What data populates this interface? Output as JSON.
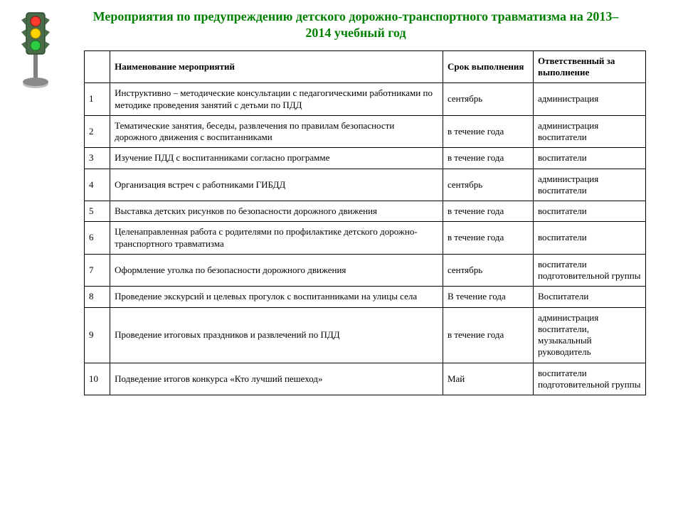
{
  "title": "Мероприятия по предупреждению детского дорожно-транспортного травматизма  на 2013– 2014 учебный  год",
  "columns": {
    "num": "",
    "name": "Наименование мероприятий",
    "term": "Срок выполнения",
    "resp": "Ответственный за выполнение"
  },
  "rows": [
    {
      "num": "1",
      "name": "Инструктивно – методические консультации с педагогическими работниками по методике проведения занятий с детьми по ПДД",
      "term": "сентябрь",
      "resp": "администрация"
    },
    {
      "num": "2",
      "name": "Тематические занятия, беседы, развлечения по правилам безопасности дорожного движения с воспитанниками",
      "term": "в течение года",
      "resp": "администрация воспитатели"
    },
    {
      "num": "3",
      "name": "Изучение ПДД с воспитанниками согласно программе",
      "term": "в течение года",
      "resp": "воспитатели"
    },
    {
      "num": "4",
      "name": "Организация встреч с работниками ГИБДД",
      "term": "сентябрь",
      "resp": "администрация воспитатели"
    },
    {
      "num": "5",
      "name": "Выставка детских рисунков по безопасности дорожного движения",
      "term": "в течение года",
      "resp": "воспитатели"
    },
    {
      "num": "6",
      "name": "Целенаправленная работа с родителями по профилактике детского дорожно-транспортного травматизма",
      "term": "в течение года",
      "resp": "воспитатели"
    },
    {
      "num": "7",
      "name": "Оформление уголка по безопасности дорожного движения",
      "term": "сентябрь",
      "resp": "воспитатели подготовительной группы"
    },
    {
      "num": "8",
      "name": "Проведение экскурсий и целевых прогулок  с воспитанниками на улицы села",
      "term": "В течение года",
      "resp": "Воспитатели"
    },
    {
      "num": "9",
      "name": "Проведение итоговых праздников и развлечений по ПДД",
      "term": "в течение года",
      "resp": "администрация воспитатели, музыкальный руководитель"
    },
    {
      "num": "10",
      "name": "Подведение итогов конкурса «Кто лучший пешеход»",
      "term": "Май",
      "resp": "воспитатели подготовительной группы"
    }
  ],
  "traffic_light": {
    "pole_color": "#808080",
    "body_color": "#4a6b4a",
    "outline": "#2d4a2d",
    "red": "#ff3b30",
    "yellow": "#ffd400",
    "green": "#2ecc40",
    "base_color": "#8a8a8a"
  }
}
